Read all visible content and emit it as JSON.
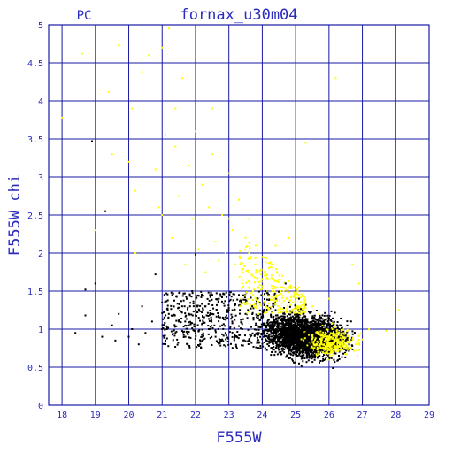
{
  "chart_data": {
    "type": "scatter",
    "title": "fornax_u30m04",
    "corner_label": "PC",
    "xlabel": "F555W",
    "ylabel": "F555W chi",
    "xlim": [
      17.6,
      29.0
    ],
    "ylim": [
      0,
      5
    ],
    "xticks": [
      "18",
      "19",
      "20",
      "21",
      "22",
      "23",
      "24",
      "25",
      "26",
      "27",
      "28",
      "29"
    ],
    "yticks": [
      "0",
      "0.5",
      "1",
      "1.5",
      "2",
      "2.5",
      "3",
      "3.5",
      "4",
      "4.5",
      "5"
    ],
    "grid": true,
    "colors": {
      "axes": "#1a1aa6",
      "text": "#2b2bbd",
      "black_points": "#000000",
      "yellow_points": "#ffff00"
    },
    "series": [
      {
        "color": "black",
        "points": [
          [
            18.4,
            0.95
          ],
          [
            18.7,
            1.18
          ],
          [
            18.7,
            1.52
          ],
          [
            18.9,
            3.47
          ],
          [
            19.0,
            1.6
          ],
          [
            19.2,
            0.9
          ],
          [
            19.3,
            2.55
          ],
          [
            19.5,
            1.05
          ],
          [
            19.6,
            0.85
          ],
          [
            19.7,
            1.2
          ],
          [
            20.0,
            0.9
          ],
          [
            20.1,
            1.0
          ],
          [
            20.3,
            0.8
          ],
          [
            20.4,
            1.3
          ],
          [
            20.5,
            0.95
          ],
          [
            20.7,
            1.1
          ],
          [
            20.8,
            1.72
          ],
          [
            21.0,
            1.0
          ],
          [
            21.0,
            1.35
          ],
          [
            21.1,
            0.85
          ],
          [
            21.2,
            1.2
          ],
          [
            21.3,
            1.45
          ],
          [
            21.4,
            0.95
          ],
          [
            21.5,
            1.1
          ],
          [
            21.6,
            1.3
          ],
          [
            21.7,
            0.9
          ],
          [
            21.8,
            1.05
          ],
          [
            21.9,
            1.5
          ],
          [
            22.0,
            0.95
          ],
          [
            22.0,
            1.98
          ],
          [
            22.1,
            1.15
          ],
          [
            22.2,
            0.85
          ],
          [
            22.3,
            1.3
          ],
          [
            22.4,
            1.0
          ],
          [
            22.5,
            1.2
          ],
          [
            22.6,
            0.9
          ],
          [
            22.7,
            1.4
          ],
          [
            22.8,
            1.05
          ],
          [
            22.9,
            0.95
          ],
          [
            23.0,
            1.25
          ],
          [
            23.1,
            1.1
          ],
          [
            23.2,
            0.9
          ],
          [
            23.3,
            1.45
          ],
          [
            23.4,
            1.0
          ],
          [
            23.5,
            1.2
          ],
          [
            23.6,
            0.85
          ],
          [
            23.7,
            1.3
          ],
          [
            23.8,
            1.05
          ],
          [
            23.9,
            0.95
          ],
          [
            24.0,
            1.15
          ],
          [
            24.1,
            1.5
          ],
          [
            24.2,
            0.9
          ],
          [
            24.3,
            1.0
          ],
          [
            24.4,
            1.25
          ],
          [
            24.5,
            0.85
          ],
          [
            24.6,
            1.1
          ],
          [
            24.7,
            0.95
          ],
          [
            24.8,
            1.35
          ],
          [
            24.9,
            0.9
          ],
          [
            25.0,
            1.0
          ],
          [
            25.1,
            0.85
          ],
          [
            25.2,
            1.15
          ],
          [
            25.3,
            0.95
          ],
          [
            25.4,
            0.8
          ],
          [
            25.5,
            1.05
          ],
          [
            25.6,
            0.9
          ],
          [
            25.7,
            0.85
          ],
          [
            25.8,
            1.0
          ],
          [
            25.9,
            0.8
          ],
          [
            26.0,
            0.95
          ],
          [
            26.1,
            0.85
          ],
          [
            26.2,
            0.8
          ],
          [
            26.3,
            0.9
          ],
          [
            26.4,
            0.75
          ],
          [
            26.5,
            0.85
          ],
          [
            26.6,
            0.8
          ],
          [
            26.7,
            0.78
          ],
          [
            24.6,
            0.8
          ],
          [
            24.8,
            0.75
          ],
          [
            25.0,
            0.7
          ],
          [
            25.2,
            0.72
          ],
          [
            25.4,
            0.68
          ],
          [
            25.6,
            0.7
          ],
          [
            25.8,
            0.72
          ],
          [
            26.0,
            0.7
          ],
          [
            26.2,
            0.68
          ],
          [
            24.4,
            0.7
          ],
          [
            24.2,
            0.78
          ],
          [
            23.9,
            0.82
          ],
          [
            24.7,
            1.6
          ],
          [
            25.1,
            1.4
          ]
        ]
      },
      {
        "color": "yellow",
        "points": [
          [
            18.0,
            3.78
          ],
          [
            18.6,
            4.62
          ],
          [
            19.0,
            2.3
          ],
          [
            19.4,
            4.12
          ],
          [
            19.5,
            3.3
          ],
          [
            19.7,
            4.73
          ],
          [
            20.0,
            3.2
          ],
          [
            20.1,
            3.9
          ],
          [
            20.2,
            2.82
          ],
          [
            20.2,
            2.0
          ],
          [
            20.4,
            4.38
          ],
          [
            20.6,
            4.6
          ],
          [
            20.8,
            3.1
          ],
          [
            21.0,
            4.7
          ],
          [
            21.0,
            2.5
          ],
          [
            21.1,
            3.55
          ],
          [
            21.2,
            4.95
          ],
          [
            21.3,
            2.2
          ],
          [
            21.4,
            3.9
          ],
          [
            21.5,
            2.75
          ],
          [
            21.6,
            4.3
          ],
          [
            21.7,
            1.85
          ],
          [
            21.8,
            3.15
          ],
          [
            21.9,
            2.45
          ],
          [
            22.0,
            3.6
          ],
          [
            22.1,
            2.05
          ],
          [
            22.2,
            2.9
          ],
          [
            22.3,
            1.75
          ],
          [
            22.4,
            2.6
          ],
          [
            22.5,
            3.3
          ],
          [
            22.6,
            2.15
          ],
          [
            22.7,
            1.9
          ],
          [
            22.8,
            2.5
          ],
          [
            22.9,
            2.0
          ],
          [
            23.0,
            3.05
          ],
          [
            23.1,
            2.3
          ],
          [
            23.2,
            1.85
          ],
          [
            23.3,
            2.7
          ],
          [
            23.4,
            1.6
          ],
          [
            23.5,
            2.2
          ],
          [
            23.6,
            2.45
          ],
          [
            23.7,
            1.7
          ],
          [
            23.8,
            2.1
          ],
          [
            23.9,
            1.55
          ],
          [
            24.0,
            1.95
          ],
          [
            24.1,
            1.65
          ],
          [
            24.2,
            1.8
          ],
          [
            24.3,
            1.5
          ],
          [
            24.4,
            2.1
          ],
          [
            24.5,
            1.45
          ],
          [
            24.6,
            1.7
          ],
          [
            24.8,
            2.2
          ],
          [
            24.9,
            1.35
          ],
          [
            25.1,
            1.55
          ],
          [
            25.3,
            3.45
          ],
          [
            25.5,
            1.3
          ],
          [
            25.7,
            1.2
          ],
          [
            25.9,
            1.1
          ],
          [
            26.1,
            1.0
          ],
          [
            26.2,
            4.3
          ],
          [
            26.3,
            0.95
          ],
          [
            26.4,
            0.85
          ],
          [
            26.6,
            0.9
          ],
          [
            26.7,
            1.85
          ],
          [
            26.8,
            0.8
          ],
          [
            26.9,
            1.6
          ],
          [
            27.2,
            1.0
          ],
          [
            27.7,
            0.98
          ],
          [
            28.1,
            1.25
          ],
          [
            26.0,
            1.4
          ],
          [
            25.8,
            0.92
          ],
          [
            26.4,
            0.78
          ],
          [
            25.6,
            0.88
          ],
          [
            23.0,
            2.45
          ],
          [
            22.5,
            3.9
          ],
          [
            21.4,
            3.4
          ],
          [
            20.9,
            2.6
          ]
        ]
      }
    ]
  }
}
